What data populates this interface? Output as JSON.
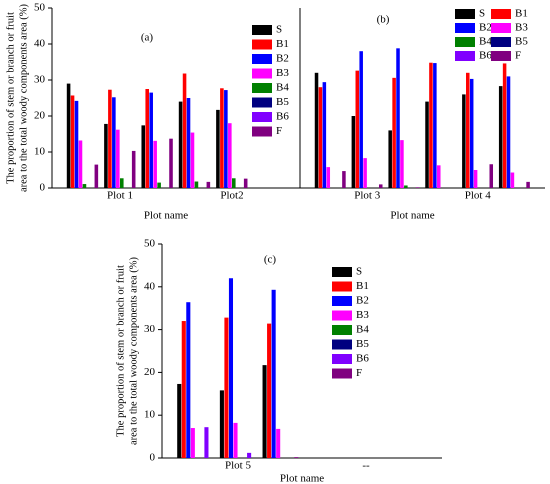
{
  "chart_data": [
    {
      "type": "bar",
      "panel_label": "(a)",
      "xlabel": "Plot name",
      "ylabel": [
        "The proportion of stem or branch or fruit",
        "area to the total woody components area (%)"
      ],
      "categories": [
        null,
        "Plot 1",
        null,
        null,
        "Plot2",
        null
      ],
      "ylim": [
        0,
        50
      ],
      "yticks": [
        0,
        10,
        20,
        30,
        40,
        50
      ],
      "legend": "upper right",
      "series": [
        {
          "name": "S",
          "color": "#000000",
          "values": [
            29,
            17.8,
            17.4,
            24,
            21.7,
            0
          ]
        },
        {
          "name": "B1",
          "color": "#ff0000",
          "values": [
            25.7,
            27.3,
            27.5,
            31.8,
            27.7,
            0
          ]
        },
        {
          "name": "B2",
          "color": "#0000ff",
          "values": [
            24.2,
            25.2,
            26.5,
            25,
            27.2,
            0
          ]
        },
        {
          "name": "B3",
          "color": "#ff00ff",
          "values": [
            13.2,
            16.2,
            13.1,
            15.4,
            18,
            0
          ]
        },
        {
          "name": "B4",
          "color": "#008000",
          "values": [
            1.1,
            2.7,
            1.5,
            1.8,
            2.7,
            0
          ]
        },
        {
          "name": "B5",
          "color": "#000080",
          "values": [
            0,
            0,
            0,
            0,
            0,
            0
          ]
        },
        {
          "name": "B6",
          "color": "#8000ff",
          "values": [
            0,
            0,
            0,
            0,
            0,
            0
          ]
        },
        {
          "name": "F",
          "color": "#800080",
          "values": [
            6.5,
            10.3,
            13.7,
            1.7,
            2.6,
            0
          ]
        }
      ]
    },
    {
      "type": "bar",
      "panel_label": "(b)",
      "xlabel": "Plot name",
      "categories": [
        null,
        "Plot 3",
        null,
        null,
        "Plot 4",
        null
      ],
      "ylim": [
        0,
        50
      ],
      "legend": "upper right",
      "series": [
        {
          "name": "S",
          "color": "#000000",
          "values": [
            32,
            20,
            16,
            24,
            26,
            28.3
          ]
        },
        {
          "name": "B1",
          "color": "#ff0000",
          "values": [
            28,
            32.6,
            30.6,
            34.8,
            32,
            34.6
          ]
        },
        {
          "name": "B2",
          "color": "#0000ff",
          "values": [
            29.4,
            38,
            38.8,
            34.7,
            30.3,
            31
          ]
        },
        {
          "name": "B3",
          "color": "#ff00ff",
          "values": [
            5.8,
            8.3,
            13.3,
            6.3,
            5,
            4.3
          ]
        },
        {
          "name": "B4",
          "color": "#008000",
          "values": [
            0,
            0,
            0.7,
            0,
            0,
            0
          ]
        },
        {
          "name": "B5",
          "color": "#000080",
          "values": [
            0,
            0,
            0,
            0,
            0,
            0
          ]
        },
        {
          "name": "B6",
          "color": "#8000ff",
          "values": [
            0,
            0,
            0,
            0,
            0,
            0
          ]
        },
        {
          "name": "F",
          "color": "#800080",
          "values": [
            4.7,
            1,
            0.2,
            0,
            6.6,
            1.7
          ]
        }
      ]
    },
    {
      "type": "bar",
      "panel_label": "(c)",
      "xlabel": "Plot name",
      "ylabel": [
        "The proportion of stem or branch or fruit",
        "area to the total woody components area (%)"
      ],
      "categories": [
        null,
        "Plot 5",
        null,
        null,
        "--",
        null
      ],
      "ylim": [
        0,
        50
      ],
      "yticks": [
        0,
        10,
        20,
        30,
        40,
        50
      ],
      "legend": "upper right",
      "series": [
        {
          "name": "S",
          "color": "#000000",
          "values": [
            17.3,
            15.8,
            21.7,
            0,
            0,
            0
          ]
        },
        {
          "name": "B1",
          "color": "#ff0000",
          "values": [
            32,
            32.8,
            31.4,
            0,
            0,
            0
          ]
        },
        {
          "name": "B2",
          "color": "#0000ff",
          "values": [
            36.4,
            42,
            39.3,
            0,
            0,
            0
          ]
        },
        {
          "name": "B3",
          "color": "#ff00ff",
          "values": [
            7,
            8.2,
            6.8,
            0,
            0,
            0
          ]
        },
        {
          "name": "B4",
          "color": "#008000",
          "values": [
            0,
            0,
            0,
            0,
            0,
            0
          ]
        },
        {
          "name": "B5",
          "color": "#000080",
          "values": [
            0,
            0,
            0,
            0,
            0,
            0
          ]
        },
        {
          "name": "B6",
          "color": "#8000ff",
          "values": [
            7.2,
            1.2,
            0,
            0,
            0,
            0
          ]
        },
        {
          "name": "F",
          "color": "#800080",
          "values": [
            0,
            0,
            0.2,
            0,
            0,
            0
          ]
        }
      ]
    }
  ]
}
